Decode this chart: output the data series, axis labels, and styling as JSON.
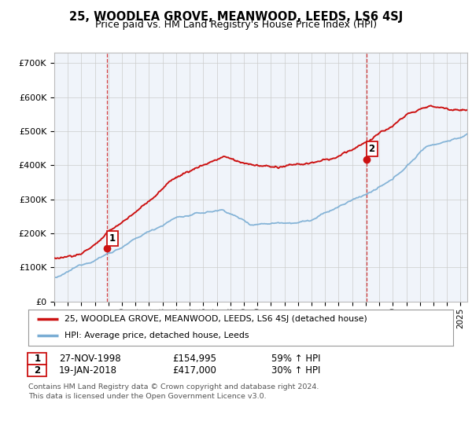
{
  "title": "25, WOODLEA GROVE, MEANWOOD, LEEDS, LS6 4SJ",
  "subtitle": "Price paid vs. HM Land Registry's House Price Index (HPI)",
  "background_color": "#ffffff",
  "plot_bg_color": "#f0f4fa",
  "grid_color": "#cccccc",
  "sale1_date": 1998.91,
  "sale1_price": 154995,
  "sale2_date": 2018.05,
  "sale2_price": 417000,
  "hpi_color": "#7aadd4",
  "price_color": "#cc1111",
  "vline_color": "#cc1111",
  "xmin": 1995.0,
  "xmax": 2025.5,
  "ymin": 0,
  "ymax": 730000,
  "legend_price_label": "25, WOODLEA GROVE, MEANWOOD, LEEDS, LS6 4SJ (detached house)",
  "legend_hpi_label": "HPI: Average price, detached house, Leeds",
  "table_row1": [
    "1",
    "27-NOV-1998",
    "£154,995",
    "59% ↑ HPI"
  ],
  "table_row2": [
    "2",
    "19-JAN-2018",
    "£417,000",
    "30% ↑ HPI"
  ],
  "footnote": "Contains HM Land Registry data © Crown copyright and database right 2024.\nThis data is licensed under the Open Government Licence v3.0.",
  "yticks": [
    0,
    100000,
    200000,
    300000,
    400000,
    500000,
    600000,
    700000
  ],
  "ytick_labels": [
    "£0",
    "£100K",
    "£200K",
    "£300K",
    "£400K",
    "£500K",
    "£600K",
    "£700K"
  ]
}
